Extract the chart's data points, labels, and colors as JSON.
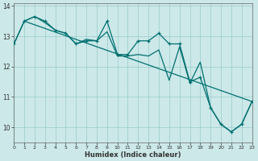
{
  "xlabel": "Humidex (Indice chaleur)",
  "bg_color": "#cce8e8",
  "grid_color": "#99cccc",
  "line_color": "#007070",
  "xlim": [
    0,
    23
  ],
  "ylim": [
    9.5,
    14.1
  ],
  "yticks": [
    10,
    11,
    12,
    13,
    14
  ],
  "xticks": [
    0,
    1,
    2,
    3,
    4,
    5,
    6,
    7,
    8,
    9,
    10,
    11,
    12,
    13,
    14,
    15,
    16,
    17,
    18,
    19,
    20,
    21,
    22,
    23
  ],
  "line_zigzag_x": [
    0,
    1,
    2,
    3,
    4,
    5,
    6,
    7,
    8,
    9,
    10,
    11,
    12,
    13,
    14,
    15,
    16,
    17,
    18,
    19,
    20,
    21,
    22,
    23
  ],
  "line_zigzag_y": [
    12.75,
    13.5,
    13.65,
    13.5,
    13.2,
    13.1,
    12.75,
    12.85,
    12.85,
    13.5,
    12.4,
    12.4,
    12.85,
    12.85,
    13.1,
    12.75,
    12.75,
    11.5,
    11.65,
    10.65,
    10.1,
    9.85,
    10.1,
    10.85
  ],
  "line_smooth_x": [
    0,
    1,
    2,
    3,
    4,
    5,
    6,
    7,
    8,
    9,
    10,
    11,
    12,
    13,
    14,
    15,
    16,
    17,
    18,
    19,
    20,
    21,
    22,
    23
  ],
  "line_smooth_y": [
    12.75,
    13.5,
    13.65,
    13.45,
    13.2,
    13.1,
    12.75,
    12.9,
    12.85,
    13.15,
    12.35,
    12.35,
    12.4,
    12.35,
    12.55,
    11.55,
    12.65,
    11.45,
    12.15,
    10.65,
    10.1,
    9.85,
    10.1,
    10.85
  ],
  "line_trend_x": [
    1,
    23
  ],
  "line_trend_y": [
    13.5,
    10.85
  ]
}
